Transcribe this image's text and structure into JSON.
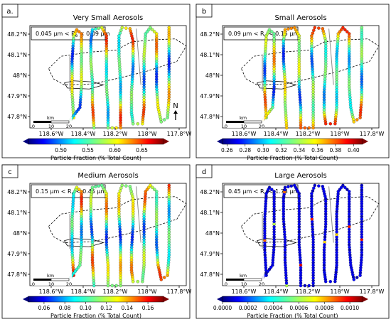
{
  "colors": {
    "frame": "#000000",
    "boundary": "#000000",
    "road": "#8c8c8c",
    "colormap": "jet"
  },
  "common": {
    "x_ticks": [
      "118.6°W",
      "118.4°W",
      "118.2°W",
      "118°W",
      "117.8°W"
    ],
    "y_ticks": [
      "48.2°N",
      "48.1°N",
      "48°N",
      "47.9°N",
      "47.8°N"
    ],
    "scalebar": {
      "unit": "km",
      "ticks": [
        "0",
        "10",
        "20"
      ]
    },
    "north_label": "N",
    "colorbar_label": "Particle Fraction (% Total Count)"
  },
  "chart_data": [
    {
      "type": "scatter",
      "panel": "a.",
      "title": "Very Small Aerosols",
      "size_range": "0.045 µm < Re < 0.09 µm",
      "size_parts": {
        "lo": "0.045 µm < R",
        "sub": "e",
        "hi": " < 0.09 µm"
      },
      "xlim": [
        -118.72,
        -117.72
      ],
      "ylim": [
        47.75,
        48.23
      ],
      "colorbar": {
        "min": 0.44,
        "max": 0.69,
        "ticks": [
          "0.50",
          "0.55",
          "0.60",
          "0.65"
        ],
        "tick_values": [
          0.5,
          0.55,
          0.6,
          0.65
        ]
      },
      "show_north": true,
      "min_value": 0.44,
      "max_value": 0.69
    },
    {
      "type": "scatter",
      "panel": "b",
      "title": "Small Aerosols",
      "size_range": "0.09 µm < Re < 0.15 µm",
      "size_parts": {
        "lo": "0.09 µm < R",
        "sub": "e",
        "hi": " < 0.15 µm"
      },
      "xlim": [
        -118.72,
        -117.72
      ],
      "ylim": [
        47.75,
        48.23
      ],
      "colorbar": {
        "min": 0.255,
        "max": 0.41,
        "ticks": [
          "0.26",
          "0.28",
          "0.30",
          "0.32",
          "0.34",
          "0.36",
          "0.38",
          "0.40"
        ],
        "tick_values": [
          0.26,
          0.28,
          0.3,
          0.32,
          0.34,
          0.36,
          0.38,
          0.4
        ]
      },
      "show_north": false,
      "min_value": 0.255,
      "max_value": 0.41
    },
    {
      "type": "scatter",
      "panel": "c",
      "title": "Medium Aerosols",
      "size_range": "0.15 µm < Re < 0.45 µm",
      "size_parts": {
        "lo": "0.15 µm < R",
        "sub": "e",
        "hi": " < 0.45 µm"
      },
      "xlim": [
        -118.72,
        -117.72
      ],
      "ylim": [
        47.75,
        48.23
      ],
      "colorbar": {
        "min": 0.045,
        "max": 0.175,
        "ticks": [
          "0.06",
          "0.08",
          "0.10",
          "0.12",
          "0.14",
          "0.16"
        ],
        "tick_values": [
          0.06,
          0.08,
          0.1,
          0.12,
          0.14,
          0.16
        ]
      },
      "show_north": false,
      "min_value": 0.045,
      "max_value": 0.175
    },
    {
      "type": "scatter",
      "panel": "d",
      "title": "Large Aerosols",
      "size_range": "0.45 µm < Re < 1.73 µm",
      "size_parts": {
        "lo": "0.45 µm < R",
        "sub": "e",
        "hi": " < 1.73 µm"
      },
      "xlim": [
        -118.72,
        -117.72
      ],
      "ylim": [
        47.75,
        48.23
      ],
      "colorbar": {
        "min": 0.0,
        "max": 0.0011,
        "ticks": [
          "0.0000",
          "0.0002",
          "0.0004",
          "0.0006",
          "0.0008",
          "0.0010"
        ],
        "tick_values": [
          0.0,
          0.0002,
          0.0004,
          0.0006,
          0.0008,
          0.001
        ]
      },
      "show_north": false,
      "min_value": 0.0,
      "max_value": 0.0011
    }
  ]
}
